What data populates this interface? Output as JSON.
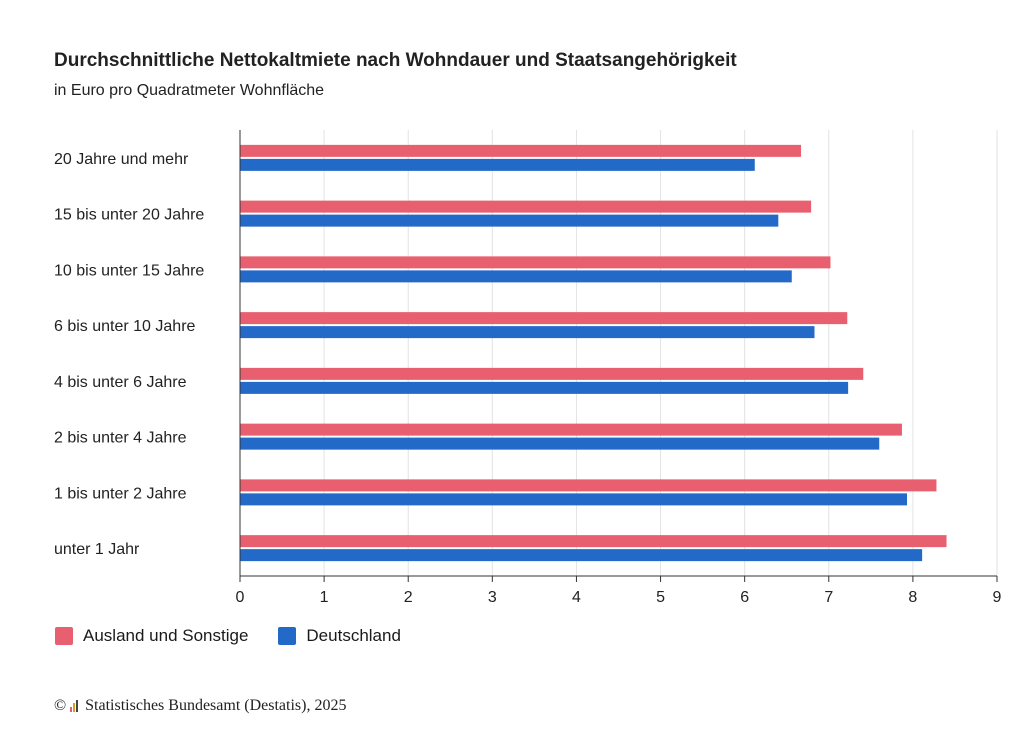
{
  "title": "Durchschnittliche Nettokaltmiete nach Wohndauer und Staatsangehörigkeit",
  "subtitle": "in Euro pro Quadratmeter Wohnfläche",
  "footer": {
    "copyright_symbol": "©",
    "source": "Statistisches Bundesamt (Destatis), 2025"
  },
  "colors": {
    "ausland": "#e8606f",
    "deutschland": "#2369c8",
    "grid": "#e2e2e2",
    "axis": "#333333"
  },
  "chart_data": {
    "type": "bar",
    "orientation": "horizontal",
    "categories": [
      "20 Jahre und mehr",
      "15 bis unter 20 Jahre",
      "10 bis unter 15 Jahre",
      "6 bis unter 10 Jahre",
      "4 bis unter 6 Jahre",
      "2 bis unter 4 Jahre",
      "1 bis unter 2 Jahre",
      "unter 1 Jahr"
    ],
    "series": [
      {
        "name": "Ausland und Sonstige",
        "values": [
          6.67,
          6.79,
          7.02,
          7.22,
          7.41,
          7.87,
          8.28,
          8.4
        ]
      },
      {
        "name": "Deutschland",
        "values": [
          6.12,
          6.4,
          6.56,
          6.83,
          7.23,
          7.6,
          7.93,
          8.11
        ]
      }
    ],
    "xlim": [
      0,
      9
    ],
    "xticks": [
      "0",
      "1",
      "2",
      "3",
      "4",
      "5",
      "6",
      "7",
      "8",
      "9"
    ],
    "grid": true,
    "legend_position": "bottom-left",
    "xlabel": "",
    "ylabel": ""
  }
}
